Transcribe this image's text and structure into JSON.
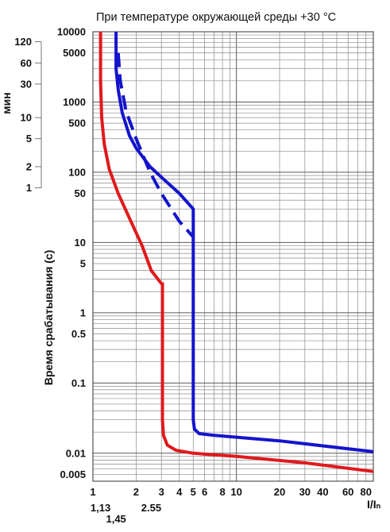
{
  "chart_data": {
    "type": "line",
    "title": "При температуре окружающей среды +30 °C",
    "xlabel": "I/Iₙ",
    "ylabel": "Время срабатывания (с)",
    "secondary_ylabel": "мин",
    "x_scale": "log",
    "y_scale": "log",
    "xlim": [
      1,
      90
    ],
    "ylim": [
      0.004,
      10000
    ],
    "grid": true,
    "x_ticks": [
      {
        "value": 1,
        "label": "1"
      },
      {
        "value": 2,
        "label": "2"
      },
      {
        "value": 3,
        "label": "3"
      },
      {
        "value": 4,
        "label": "4"
      },
      {
        "value": 5,
        "label": "5"
      },
      {
        "value": 6,
        "label": "6"
      },
      {
        "value": 8,
        "label": "8"
      },
      {
        "value": 10,
        "label": "10"
      },
      {
        "value": 20,
        "label": "20"
      },
      {
        "value": 30,
        "label": "30"
      },
      {
        "value": 40,
        "label": "40"
      },
      {
        "value": 60,
        "label": "60"
      },
      {
        "value": 80,
        "label": "80"
      }
    ],
    "x_extra_ticks": [
      {
        "value": 1.13,
        "label": "1,13",
        "row": 1
      },
      {
        "value": 1.45,
        "label": "1,45",
        "row": 2
      },
      {
        "value": 2.55,
        "label": "2.55",
        "row": 1
      }
    ],
    "y_ticks": [
      {
        "value": 10000,
        "label": "10000"
      },
      {
        "value": 5000,
        "label": "5000"
      },
      {
        "value": 1000,
        "label": "1000"
      },
      {
        "value": 500,
        "label": "500"
      },
      {
        "value": 100,
        "label": "100"
      },
      {
        "value": 50,
        "label": "50"
      },
      {
        "value": 10,
        "label": "10"
      },
      {
        "value": 5,
        "label": "5"
      },
      {
        "value": 1,
        "label": "1"
      },
      {
        "value": 0.5,
        "label": "0.5"
      },
      {
        "value": 0.1,
        "label": "0.1"
      },
      {
        "value": 0.01,
        "label": "0.01"
      },
      {
        "value": 0.005,
        "label": "0.005"
      }
    ],
    "minute_ticks": [
      {
        "value": 120,
        "label": "120"
      },
      {
        "value": 60,
        "label": "60"
      },
      {
        "value": 30,
        "label": "30"
      },
      {
        "value": 10,
        "label": "10"
      },
      {
        "value": 5,
        "label": "5"
      },
      {
        "value": 2,
        "label": "2"
      },
      {
        "value": 1,
        "label": "1"
      }
    ],
    "series": [
      {
        "color": "#e0191c",
        "dashed": false,
        "points": [
          [
            1.13,
            10000
          ],
          [
            1.13,
            2000
          ],
          [
            1.15,
            600
          ],
          [
            1.2,
            250
          ],
          [
            1.3,
            110
          ],
          [
            1.5,
            50
          ],
          [
            1.8,
            22
          ],
          [
            2.2,
            9
          ],
          [
            2.55,
            4
          ],
          [
            3.0,
            2.6
          ],
          [
            3.05,
            2.6
          ],
          [
            3.05,
            0.03
          ],
          [
            3.1,
            0.018
          ],
          [
            3.3,
            0.013
          ],
          [
            3.8,
            0.011
          ],
          [
            5,
            0.01
          ],
          [
            10,
            0.009
          ],
          [
            30,
            0.0073
          ],
          [
            90,
            0.0055
          ]
        ]
      },
      {
        "color": "#1414cc",
        "dashed": false,
        "points": [
          [
            1.45,
            10000
          ],
          [
            1.45,
            3000
          ],
          [
            1.5,
            1500
          ],
          [
            1.6,
            700
          ],
          [
            1.8,
            330
          ],
          [
            2.0,
            220
          ],
          [
            2.5,
            120
          ],
          [
            3.0,
            85
          ],
          [
            4.0,
            50
          ],
          [
            5.0,
            30
          ],
          [
            5.0,
            0.03
          ],
          [
            5.1,
            0.022
          ],
          [
            5.5,
            0.019
          ],
          [
            7,
            0.018
          ],
          [
            20,
            0.015
          ],
          [
            90,
            0.0105
          ]
        ]
      },
      {
        "color": "#1414cc",
        "dashed": true,
        "points": [
          [
            1.5,
            5000
          ],
          [
            1.55,
            2000
          ],
          [
            1.7,
            750
          ],
          [
            2.0,
            300
          ],
          [
            2.5,
            100
          ],
          [
            3.0,
            50
          ],
          [
            4.0,
            20
          ],
          [
            5.0,
            12
          ]
        ]
      }
    ]
  }
}
